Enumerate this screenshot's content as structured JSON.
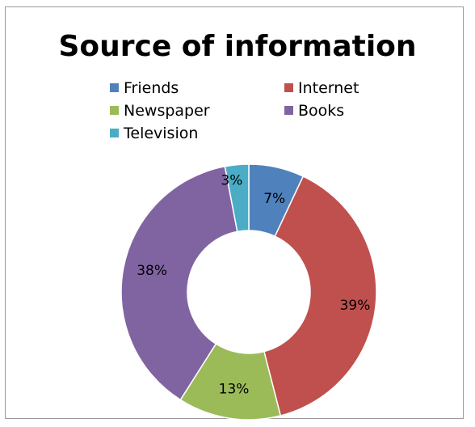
{
  "chart_data": {
    "type": "pie",
    "variant": "donut",
    "title": "Source of information",
    "legend_position": "top",
    "categories": [
      "Friends",
      "Internet",
      "Newspaper",
      "Books",
      "Television"
    ],
    "values": [
      7,
      39,
      13,
      38,
      3
    ],
    "data_labels": [
      "7%",
      "39%",
      "13%",
      "38%",
      "3%"
    ],
    "colors": [
      "#4f81bd",
      "#c0504d",
      "#9bbb59",
      "#8064a2",
      "#4bacc6"
    ]
  }
}
